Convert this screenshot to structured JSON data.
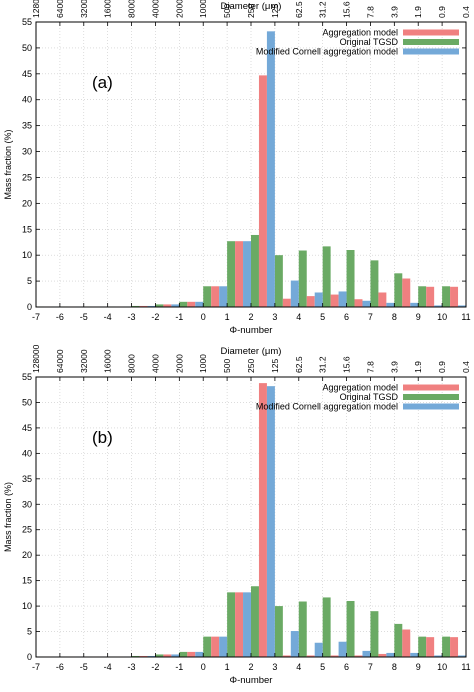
{
  "charts": [
    {
      "panel_label": "(a)",
      "top_axis_label": "Diameter (μm)",
      "top_ticks": [
        "128000",
        "64000",
        "32000",
        "16000",
        "8000",
        "4000",
        "2000",
        "1000",
        "500",
        "250",
        "125",
        "62.5",
        "31.2",
        "15.6",
        "7.8",
        "3.9",
        "1.9",
        "0.9",
        "0.4"
      ],
      "xlabel": "Φ-number",
      "ylabel": "Mass fraction (%)",
      "x_ticks": [
        "-7",
        "-6",
        "-5",
        "-4",
        "-3",
        "-2",
        "-1",
        "0",
        "1",
        "2",
        "3",
        "4",
        "5",
        "6",
        "7",
        "8",
        "9",
        "10",
        "11"
      ],
      "y_ticks": [
        "0",
        "5",
        "10",
        "15",
        "20",
        "25",
        "30",
        "35",
        "40",
        "45",
        "50",
        "55"
      ],
      "legend": [
        {
          "label": "Aggregation model",
          "color": "#f08080"
        },
        {
          "label": "Original TGSD",
          "color": "#6aaa64"
        },
        {
          "label": "Modified Cornell aggregation model",
          "color": "#74a9d8"
        }
      ]
    },
    {
      "panel_label": "(b)",
      "top_axis_label": "Diameter (μm)",
      "top_ticks": [
        "128000",
        "64000",
        "32000",
        "16000",
        "8000",
        "4000",
        "2000",
        "1000",
        "500",
        "250",
        "125",
        "62.5",
        "31.2",
        "15.6",
        "7.8",
        "3.9",
        "1.9",
        "0.9",
        "0.4"
      ],
      "xlabel": "Φ-number",
      "ylabel": "Mass fraction (%)",
      "x_ticks": [
        "-7",
        "-6",
        "-5",
        "-4",
        "-3",
        "-2",
        "-1",
        "0",
        "1",
        "2",
        "3",
        "4",
        "5",
        "6",
        "7",
        "8",
        "9",
        "10",
        "11"
      ],
      "y_ticks": [
        "0",
        "5",
        "10",
        "15",
        "20",
        "25",
        "30",
        "35",
        "40",
        "45",
        "50",
        "55"
      ],
      "legend": [
        {
          "label": "Aggregation model",
          "color": "#f08080"
        },
        {
          "label": "Original TGSD",
          "color": "#6aaa64"
        },
        {
          "label": "Modified Cornell aggregation model",
          "color": "#74a9d8"
        }
      ]
    }
  ],
  "chart_data": [
    {
      "type": "bar",
      "xlim": [
        -7,
        11
      ],
      "ylim": [
        0,
        55
      ],
      "grid": true,
      "legend_position": "top-right",
      "categories": [
        -7,
        -6,
        -5,
        -4,
        -3,
        -2,
        -1,
        0,
        1,
        2,
        3,
        4,
        5,
        6,
        7,
        8,
        9,
        10
      ],
      "series": [
        {
          "name": "Original TGSD",
          "color": "#6aaa64",
          "values": [
            0.1,
            0.1,
            0.1,
            0.1,
            0.2,
            0.5,
            1.0,
            4.0,
            12.7,
            13.9,
            10.0,
            10.9,
            11.7,
            11.0,
            9.0,
            6.5,
            4.0,
            4.0
          ]
        },
        {
          "name": "Aggregation model",
          "color": "#f08080",
          "values": [
            0.1,
            0.1,
            0.1,
            0.1,
            0.2,
            0.5,
            1.0,
            4.0,
            12.7,
            44.7,
            1.6,
            2.1,
            2.4,
            1.5,
            2.8,
            5.5,
            3.9,
            3.9
          ]
        },
        {
          "name": "Modified Cornell aggregation model",
          "color": "#74a9d8",
          "values": [
            0.1,
            0.1,
            0.1,
            0.1,
            0.2,
            0.5,
            1.0,
            4.0,
            12.7,
            53.2,
            5.1,
            2.8,
            3.0,
            1.2,
            0.8,
            0.8,
            0.3,
            0.3
          ]
        }
      ]
    },
    {
      "type": "bar",
      "xlim": [
        -7,
        11
      ],
      "ylim": [
        0,
        55
      ],
      "grid": true,
      "legend_position": "top-right",
      "categories": [
        -7,
        -6,
        -5,
        -4,
        -3,
        -2,
        -1,
        0,
        1,
        2,
        3,
        4,
        5,
        6,
        7,
        8,
        9,
        10
      ],
      "series": [
        {
          "name": "Original TGSD",
          "color": "#6aaa64",
          "values": [
            0.1,
            0.1,
            0.1,
            0.1,
            0.2,
            0.5,
            1.0,
            4.0,
            12.7,
            13.9,
            10.0,
            10.9,
            11.7,
            11.0,
            9.0,
            6.5,
            4.0,
            4.0
          ]
        },
        {
          "name": "Aggregation model",
          "color": "#f08080",
          "values": [
            0.1,
            0.1,
            0.1,
            0.1,
            0.2,
            0.5,
            1.0,
            4.0,
            12.7,
            53.8,
            0.3,
            0.3,
            0.3,
            0.3,
            0.6,
            5.4,
            3.9,
            3.9
          ]
        },
        {
          "name": "Modified Cornell aggregation model",
          "color": "#74a9d8",
          "values": [
            0.1,
            0.1,
            0.1,
            0.1,
            0.2,
            0.5,
            1.0,
            4.0,
            12.7,
            53.2,
            5.1,
            2.8,
            3.0,
            1.2,
            0.8,
            0.8,
            0.3,
            0.3
          ]
        }
      ]
    }
  ]
}
